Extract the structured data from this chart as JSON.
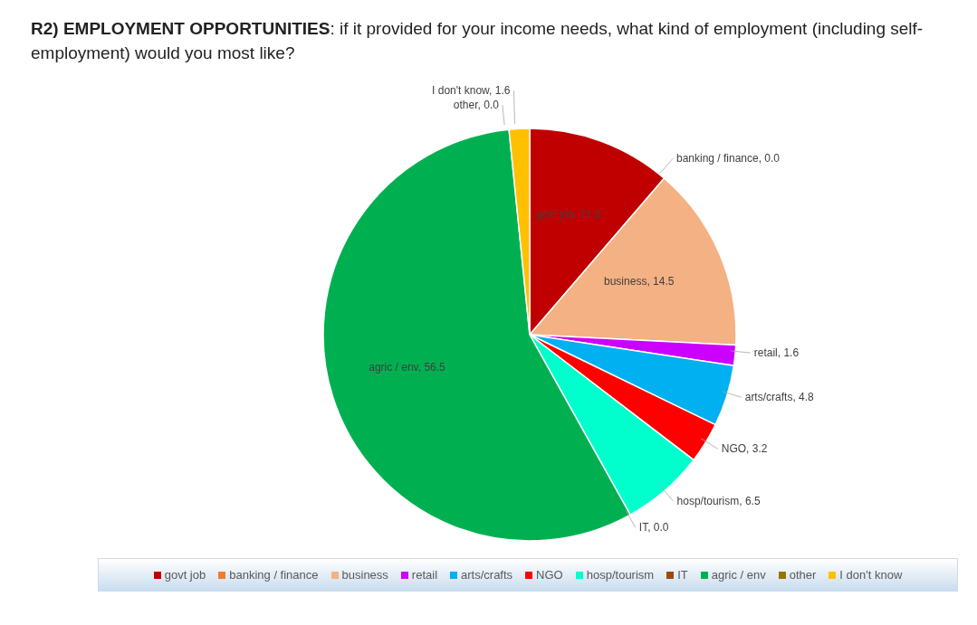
{
  "chart_data": {
    "type": "pie",
    "title": "R2) EMPLOYMENT OPPORTUNITIES: if it provided for your income needs, what kind of employment (including self-employment) would you most like?",
    "categories": [
      "govt job",
      "banking / finance",
      "business",
      "retail",
      "arts/crafts",
      "NGO",
      "hosp/tourism",
      "IT",
      "agric / env",
      "other",
      "I don't know"
    ],
    "values": [
      11.3,
      0,
      14.5,
      1.6,
      4.8,
      3.2,
      6.5,
      0,
      56.5,
      0,
      1.6
    ],
    "value_labels": [
      "govt job, 11.3",
      "banking / finance, 0.0",
      "business, 14.5",
      "retail, 1.6",
      "arts/crafts, 4.8",
      "NGO, 3.2",
      "hosp/tourism, 6.5",
      "IT, 0.0",
      "agric / env, 56.5",
      "other, 0.0",
      "I don't know, 1.6"
    ],
    "colors": [
      "#c00000",
      "#ed7d31",
      "#f4b183",
      "#cc00ff",
      "#00b0f0",
      "#ff0000",
      "#00ffcc",
      "#9c4a14",
      "#00b050",
      "#997300",
      "#ffc000"
    ],
    "legend": "bottom"
  }
}
